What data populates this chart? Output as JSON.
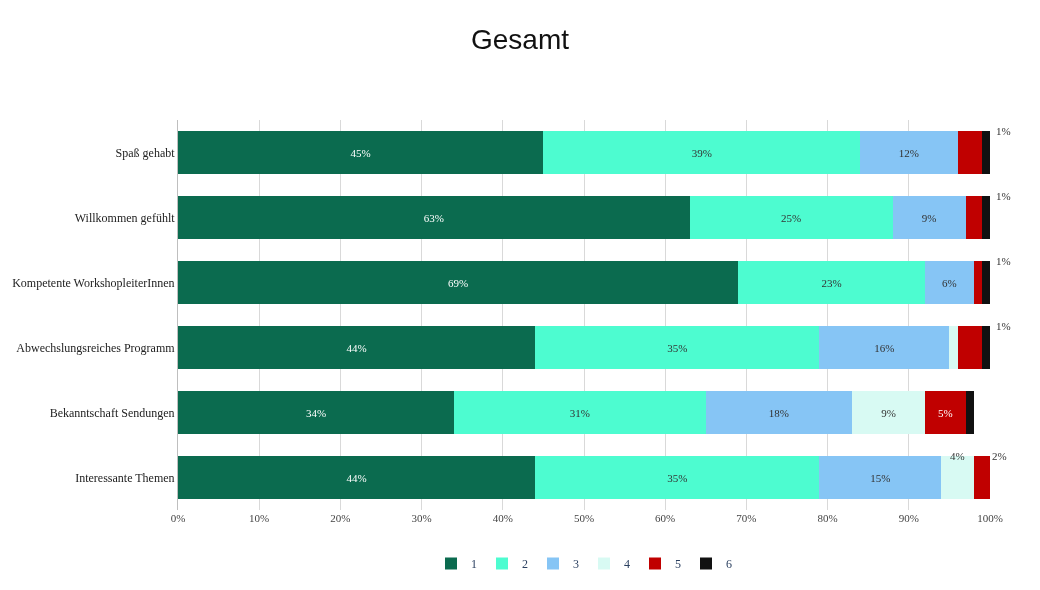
{
  "chart_data": {
    "type": "bar",
    "orientation": "horizontal",
    "stacked": true,
    "title": "Gesamt",
    "categories": [
      "Spaß gehabt",
      "Willkommen gefühlt",
      "Kompetente WorkshopleiterInnen",
      "Abwechslungsreiches Programm",
      "Bekanntschaft Sendungen",
      "Interessante Themen"
    ],
    "series": [
      {
        "name": "1",
        "color": "#0b6b4f",
        "values": [
          45,
          63,
          69,
          44,
          34,
          44
        ],
        "value_labels": [
          "45%",
          "63%",
          "69%",
          "44%",
          "34%",
          "44%"
        ]
      },
      {
        "name": "2",
        "color": "#4dfcd0",
        "values": [
          39,
          25,
          23,
          35,
          31,
          35
        ],
        "value_labels": [
          "39%",
          "25%",
          "23%",
          "35%",
          "31%",
          "35%"
        ]
      },
      {
        "name": "3",
        "color": "#86c5f5",
        "values": [
          12,
          9,
          6,
          16,
          18,
          15
        ],
        "value_labels": [
          "12%",
          "9%",
          "6%",
          "16%",
          "18%",
          "15%"
        ]
      },
      {
        "name": "4",
        "color": "#d8faf3",
        "values": [
          null,
          null,
          null,
          1,
          9,
          4
        ],
        "value_labels": [
          null,
          null,
          null,
          null,
          "9%",
          "4%"
        ]
      },
      {
        "name": "5",
        "color": "#c00000",
        "values": [
          3,
          2,
          1,
          3,
          5,
          2
        ],
        "value_labels": [
          null,
          null,
          null,
          null,
          "5%",
          "2%"
        ]
      },
      {
        "name": "6",
        "color": "#111111",
        "values": [
          1,
          1,
          1,
          1,
          1,
          null
        ],
        "value_labels": [
          "1%",
          "1%",
          "1%",
          "1%",
          null,
          null
        ]
      }
    ],
    "xlim": [
      0,
      100
    ],
    "xticks": [
      {
        "value": 0,
        "label": "0%"
      },
      {
        "value": 10,
        "label": "10%"
      },
      {
        "value": 20,
        "label": "20%"
      },
      {
        "value": 30,
        "label": "30%"
      },
      {
        "value": 40,
        "label": "40%"
      },
      {
        "value": 50,
        "label": "50%"
      },
      {
        "value": 60,
        "label": "60%"
      },
      {
        "value": 70,
        "label": "70%"
      },
      {
        "value": 80,
        "label": "80%"
      },
      {
        "value": 90,
        "label": "90%"
      },
      {
        "value": 100,
        "label": "100%"
      }
    ],
    "grid": "x",
    "legend": "bottom"
  }
}
